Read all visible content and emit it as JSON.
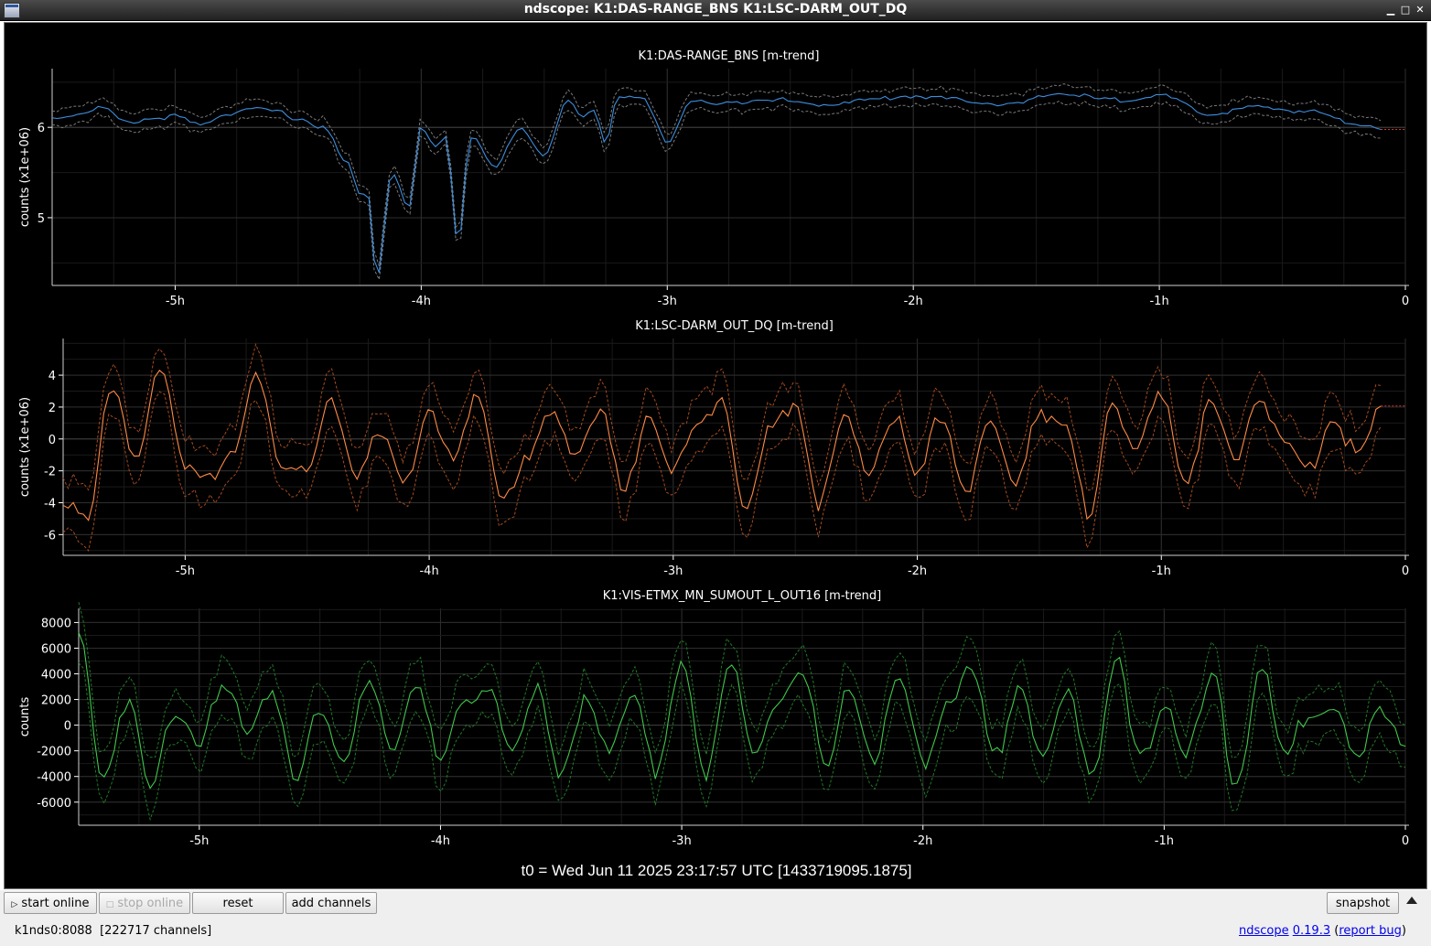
{
  "window": {
    "title": "ndscope: K1:DAS-RANGE_BNS K1:LSC-DARM_OUT_DQ"
  },
  "plots": [
    {
      "title": "K1:DAS-RANGE_BNS [m-trend]",
      "ylabel": "counts (x1e+06)",
      "yticks": [
        {
          "v": 5,
          "label": "5"
        },
        {
          "v": 6,
          "label": "6"
        }
      ],
      "ylim": [
        4.25,
        6.65
      ],
      "color": "#3c8fdf",
      "band_color": "#7a7a7a",
      "ref_value": 6,
      "tail_color": "#d13a2a"
    },
    {
      "title": "K1:LSC-DARM_OUT_DQ [m-trend]",
      "ylabel": "counts (x1e+06)",
      "yticks": [
        {
          "v": 4,
          "label": "4"
        },
        {
          "v": 2,
          "label": "2"
        },
        {
          "v": 0,
          "label": "0"
        },
        {
          "v": -2,
          "label": "-2"
        },
        {
          "v": -4,
          "label": "-4"
        },
        {
          "v": -6,
          "label": "-6"
        }
      ],
      "ylim": [
        -7.3,
        6.3
      ],
      "color": "#ff8a45",
      "band_color": "#a44b1e",
      "ref_value": 0,
      "tail_color": "#d13a2a"
    },
    {
      "title": "K1:VIS-ETMX_MN_SUMOUT_L_OUT16 [m-trend]",
      "ylabel": "counts",
      "yticks": [
        {
          "v": 8000,
          "label": "8000"
        },
        {
          "v": 6000,
          "label": "6000"
        },
        {
          "v": 4000,
          "label": "4000"
        },
        {
          "v": 2000,
          "label": "2000"
        },
        {
          "v": 0,
          "label": "0"
        },
        {
          "v": -2000,
          "label": "-2000"
        },
        {
          "v": -4000,
          "label": "-4000"
        },
        {
          "v": -6000,
          "label": "-6000"
        }
      ],
      "ylim": [
        -7800,
        9100
      ],
      "color": "#3fc84a",
      "band_color": "#1f7a26",
      "ref_value": 0,
      "tail_color": "#d13a2a"
    }
  ],
  "xaxis": {
    "unit": "hours",
    "xlim": [
      -5.5,
      0
    ],
    "ticks": [
      {
        "v": -5,
        "label": "-5h"
      },
      {
        "v": -4,
        "label": "-4h"
      },
      {
        "v": -3,
        "label": "-3h"
      },
      {
        "v": -2,
        "label": "-2h"
      },
      {
        "v": -1,
        "label": "-1h"
      },
      {
        "v": 0,
        "label": "0"
      }
    ]
  },
  "t0_label": "t0 = Wed Jun 11 2025 23:17:57 UTC [1433719095.1875]",
  "toolbar": {
    "start_online": "start online",
    "stop_online": "stop online",
    "reset": "reset",
    "add_channels": "add channels",
    "snapshot": "snapshot"
  },
  "status": {
    "server": "k1nds0:8088",
    "channels": "[222717 channels]",
    "app_name": "ndscope",
    "version": "0.19.3",
    "report_bug": "report bug"
  },
  "chart_data": [
    {
      "type": "line",
      "title": "K1:DAS-RANGE_BNS [m-trend]",
      "xlabel": "",
      "ylabel": "counts (x1e+06)",
      "xlim": [
        -5.5,
        0
      ],
      "ylim": [
        4.25,
        6.65
      ],
      "grid": true,
      "x": [
        -5.5,
        -5.4,
        -5.3,
        -5.2,
        -5.1,
        -5.0,
        -4.9,
        -4.8,
        -4.7,
        -4.6,
        -4.5,
        -4.4,
        -4.3,
        -4.25,
        -4.22,
        -4.18,
        -4.12,
        -4.05,
        -4.0,
        -3.95,
        -3.9,
        -3.85,
        -3.8,
        -3.7,
        -3.6,
        -3.5,
        -3.4,
        -3.35,
        -3.3,
        -3.25,
        -3.2,
        -3.1,
        -3.0,
        -2.9,
        -2.8,
        -2.6,
        -2.4,
        -2.2,
        -2.0,
        -1.8,
        -1.6,
        -1.4,
        -1.2,
        -1.0,
        -0.8,
        -0.6,
        -0.4,
        -0.2,
        -0.1
      ],
      "series": [
        {
          "values": [
            6.1,
            6.15,
            6.22,
            6.05,
            6.1,
            6.12,
            6.02,
            6.15,
            6.2,
            6.18,
            6.1,
            6.0,
            5.6,
            5.25,
            5.3,
            4.35,
            5.5,
            5.1,
            6.0,
            5.8,
            5.9,
            4.75,
            5.9,
            5.55,
            6.0,
            5.7,
            6.3,
            6.1,
            6.2,
            5.85,
            6.35,
            6.3,
            5.85,
            6.3,
            6.25,
            6.32,
            6.25,
            6.3,
            6.35,
            6.3,
            6.25,
            6.38,
            6.3,
            6.35,
            6.15,
            6.22,
            6.18,
            6.05,
            6.0
          ]
        }
      ]
    },
    {
      "type": "line",
      "title": "K1:LSC-DARM_OUT_DQ [m-trend]",
      "xlabel": "",
      "ylabel": "counts (x1e+06)",
      "xlim": [
        -5.5,
        0
      ],
      "ylim": [
        -7.3,
        6.3
      ],
      "grid": true,
      "x": [
        -5.5,
        -5.4,
        -5.3,
        -5.2,
        -5.1,
        -5.0,
        -4.9,
        -4.8,
        -4.7,
        -4.6,
        -4.5,
        -4.4,
        -4.3,
        -4.2,
        -4.1,
        -4.0,
        -3.9,
        -3.8,
        -3.7,
        -3.6,
        -3.5,
        -3.4,
        -3.3,
        -3.2,
        -3.1,
        -3.0,
        -2.9,
        -2.8,
        -2.7,
        -2.6,
        -2.5,
        -2.4,
        -2.3,
        -2.2,
        -2.1,
        -2.0,
        -1.9,
        -1.8,
        -1.7,
        -1.6,
        -1.5,
        -1.4,
        -1.3,
        -1.2,
        -1.1,
        -1.0,
        -0.9,
        -0.8,
        -0.7,
        -0.6,
        -0.5,
        -0.4,
        -0.3,
        -0.2,
        -0.1
      ],
      "series": [
        {
          "values": [
            -3.5,
            -5.5,
            3.5,
            -1.0,
            4.0,
            -1.5,
            -2.0,
            -1.0,
            4.0,
            -1.5,
            -2.5,
            2.5,
            -2.0,
            0.0,
            -3.0,
            2.0,
            -1.5,
            2.5,
            -3.5,
            -1.5,
            1.5,
            -0.5,
            1.5,
            -3.5,
            2.0,
            -2.0,
            0.5,
            3.0,
            -4.5,
            0.5,
            2.5,
            -4.0,
            1.0,
            -2.0,
            1.5,
            -2.5,
            1.5,
            -3.0,
            0.5,
            -2.5,
            2.0,
            0.5,
            -4.5,
            2.5,
            -1.0,
            3.0,
            -2.5,
            2.0,
            -1.5,
            3.0,
            -0.5,
            -2.0,
            1.5,
            -1.0,
            1.5
          ]
        }
      ]
    },
    {
      "type": "line",
      "title": "K1:VIS-ETMX_MN_SUMOUT_L_OUT16 [m-trend]",
      "xlabel": "",
      "ylabel": "counts",
      "xlim": [
        -5.5,
        0
      ],
      "ylim": [
        -7800,
        9100
      ],
      "grid": true,
      "x": [
        -5.5,
        -5.4,
        -5.3,
        -5.2,
        -5.1,
        -5.0,
        -4.9,
        -4.8,
        -4.7,
        -4.6,
        -4.5,
        -4.4,
        -4.3,
        -4.2,
        -4.1,
        -4.0,
        -3.9,
        -3.8,
        -3.7,
        -3.6,
        -3.5,
        -3.4,
        -3.3,
        -3.2,
        -3.1,
        -3.0,
        -2.9,
        -2.8,
        -2.7,
        -2.6,
        -2.5,
        -2.4,
        -2.3,
        -2.2,
        -2.1,
        -2.0,
        -1.9,
        -1.8,
        -1.7,
        -1.6,
        -1.5,
        -1.4,
        -1.3,
        -1.2,
        -1.1,
        -1.0,
        -0.9,
        -0.8,
        -0.7,
        -0.6,
        -0.5,
        -0.4,
        -0.3,
        -0.2,
        -0.1,
        0.0
      ],
      "series": [
        {
          "values": [
            7000,
            -4000,
            2000,
            -5000,
            1500,
            -1000,
            2500,
            0,
            3000,
            -4500,
            1500,
            -2500,
            3000,
            -2000,
            3500,
            -3000,
            1500,
            3500,
            -2500,
            2500,
            -3500,
            2000,
            -2500,
            3000,
            -3500,
            4500,
            -3500,
            5000,
            -3000,
            2000,
            4500,
            -4000,
            3000,
            -2500,
            3500,
            -3000,
            2000,
            4000,
            -2500,
            3500,
            -3000,
            2500,
            -3500,
            5000,
            -3000,
            2000,
            -2000,
            3500,
            -4500,
            4500,
            -2500,
            1000,
            2000,
            -3000,
            1500,
            -1000
          ]
        }
      ]
    }
  ]
}
